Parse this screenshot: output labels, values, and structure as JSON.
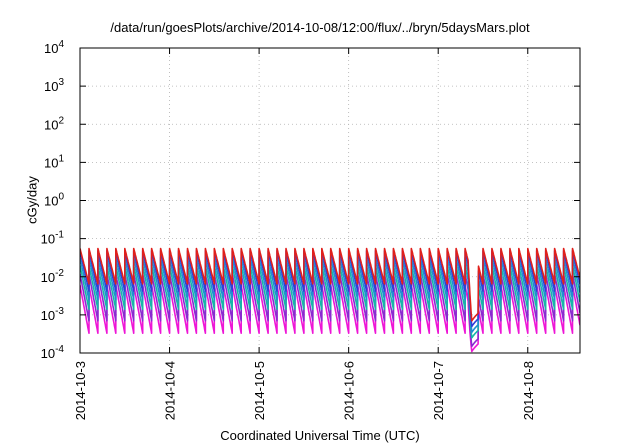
{
  "chart_data": {
    "type": "line",
    "title": "/data/run/goesPlots/archive/2014-10-08/12:00/flux/../bryn/5daysMars.plot",
    "xlabel": "Coordinated Universal Time (UTC)",
    "ylabel": "cGy/day",
    "yscale": "log",
    "ylim": [
      0.0001,
      10000
    ],
    "xlim": [
      "2014-10-03 00:00",
      "2014-10-08 14:00"
    ],
    "y_ticks": [
      {
        "value": 0.0001,
        "base": "10",
        "exp": "-4"
      },
      {
        "value": 0.001,
        "base": "10",
        "exp": "-3"
      },
      {
        "value": 0.01,
        "base": "10",
        "exp": "-2"
      },
      {
        "value": 0.1,
        "base": "10",
        "exp": "-1"
      },
      {
        "value": 1,
        "base": "10",
        "exp": "0"
      },
      {
        "value": 10,
        "base": "10",
        "exp": "1"
      },
      {
        "value": 100,
        "base": "10",
        "exp": "2"
      },
      {
        "value": 1000,
        "base": "10",
        "exp": "3"
      },
      {
        "value": 10000,
        "base": "10",
        "exp": "4"
      }
    ],
    "x_ticks": [
      "2014-10-3",
      "2014-10-4",
      "2014-10-5",
      "2014-10-6",
      "2014-10-7",
      "2014-10-8"
    ],
    "grid": true,
    "legend": "none",
    "cycle_hours": 2.4,
    "dip": {
      "start": "2014-10-07 08:00",
      "bottom": "2014-10-07 09:00",
      "end": "2014-10-07 10:48"
    },
    "series": [
      {
        "color": "#e0201c",
        "peak": 0.055,
        "trough": 0.0065,
        "dip_min": 0.0007
      },
      {
        "color": "#2f3fd8",
        "peak": 0.048,
        "trough": 0.0042,
        "dip_min": 0.0005
      },
      {
        "color": "#1f8fd0",
        "peak": 0.032,
        "trough": 0.0025,
        "dip_min": 0.00035
      },
      {
        "color": "#17b5a8",
        "peak": 0.02,
        "trough": 0.0014,
        "dip_min": 0.00025
      },
      {
        "color": "#8a2ad0",
        "peak": 0.012,
        "trough": 0.0007,
        "dip_min": 0.00015
      },
      {
        "color": "#ee16d6",
        "peak": 0.006,
        "trough": 0.00033,
        "dip_min": 0.00011
      }
    ]
  }
}
